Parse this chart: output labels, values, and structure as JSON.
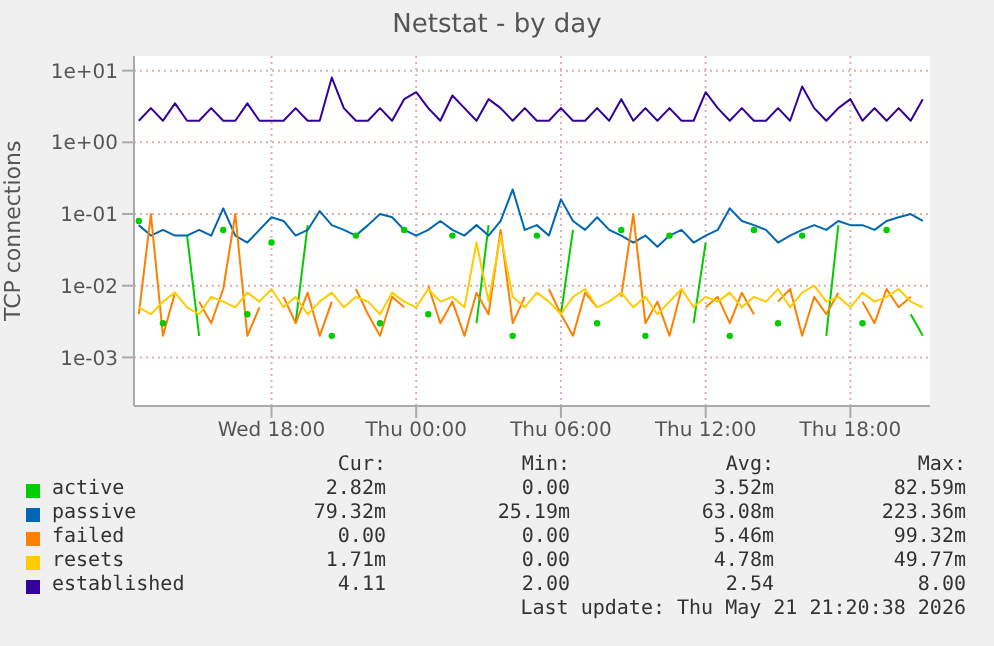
{
  "chart_data": {
    "type": "line",
    "title": "Netstat - by day",
    "ylabel": "TCP connections",
    "log": "y",
    "grid": true,
    "legend": "bottom",
    "xlim": [
      "2026-05-20T12:18",
      "2026-05-21T21:18"
    ],
    "xticks": [
      {
        "value": "2026-05-20T18:00",
        "label": "Wed 18:00"
      },
      {
        "value": "2026-05-21T00:00",
        "label": "Thu 00:00"
      },
      {
        "value": "2026-05-21T06:00",
        "label": "Thu 06:00"
      },
      {
        "value": "2026-05-21T12:00",
        "label": "Thu 12:00"
      },
      {
        "value": "2026-05-21T18:00",
        "label": "Thu 18:00"
      }
    ],
    "ylim": [
      0.00021,
      16
    ],
    "yticks": [
      {
        "value": 0.001,
        "label": "1e-03"
      },
      {
        "value": 0.01,
        "label": "1e-02"
      },
      {
        "value": 0.1,
        "label": "1e-01"
      },
      {
        "value": 1,
        "label": "1e+00"
      },
      {
        "value": 10,
        "label": "1e+01"
      }
    ],
    "x": [
      "2026-05-20T12:30",
      "2026-05-20T13:00",
      "2026-05-20T13:30",
      "2026-05-20T14:00",
      "2026-05-20T14:30",
      "2026-05-20T15:00",
      "2026-05-20T15:30",
      "2026-05-20T16:00",
      "2026-05-20T16:30",
      "2026-05-20T17:00",
      "2026-05-20T17:30",
      "2026-05-20T18:00",
      "2026-05-20T18:30",
      "2026-05-20T19:00",
      "2026-05-20T19:30",
      "2026-05-20T20:00",
      "2026-05-20T20:30",
      "2026-05-20T21:00",
      "2026-05-20T21:30",
      "2026-05-20T22:00",
      "2026-05-20T22:30",
      "2026-05-20T23:00",
      "2026-05-20T23:30",
      "2026-05-21T00:00",
      "2026-05-21T00:30",
      "2026-05-21T01:00",
      "2026-05-21T01:30",
      "2026-05-21T02:00",
      "2026-05-21T02:30",
      "2026-05-21T03:00",
      "2026-05-21T03:30",
      "2026-05-21T04:00",
      "2026-05-21T04:30",
      "2026-05-21T05:00",
      "2026-05-21T05:30",
      "2026-05-21T06:00",
      "2026-05-21T06:30",
      "2026-05-21T07:00",
      "2026-05-21T07:30",
      "2026-05-21T08:00",
      "2026-05-21T08:30",
      "2026-05-21T09:00",
      "2026-05-21T09:30",
      "2026-05-21T10:00",
      "2026-05-21T10:30",
      "2026-05-21T11:00",
      "2026-05-21T11:30",
      "2026-05-21T12:00",
      "2026-05-21T12:30",
      "2026-05-21T13:00",
      "2026-05-21T13:30",
      "2026-05-21T14:00",
      "2026-05-21T14:30",
      "2026-05-21T15:00",
      "2026-05-21T15:30",
      "2026-05-21T16:00",
      "2026-05-21T16:30",
      "2026-05-21T17:00",
      "2026-05-21T17:30",
      "2026-05-21T18:00",
      "2026-05-21T18:30",
      "2026-05-21T19:00",
      "2026-05-21T19:30",
      "2026-05-21T20:00",
      "2026-05-21T20:30",
      "2026-05-21T21:00"
    ],
    "series": [
      {
        "name": "active",
        "color": "#00cc00",
        "values": [
          0.08,
          null,
          0.003,
          null,
          0.05,
          0.002,
          null,
          0.06,
          null,
          0.004,
          null,
          0.04,
          null,
          0.003,
          0.07,
          null,
          0.002,
          null,
          0.05,
          null,
          0.003,
          null,
          0.06,
          null,
          0.004,
          null,
          0.05,
          null,
          0.003,
          0.07,
          null,
          0.002,
          null,
          0.05,
          null,
          0.004,
          0.06,
          null,
          0.003,
          null,
          0.06,
          null,
          0.002,
          null,
          0.05,
          null,
          0.003,
          0.04,
          null,
          0.002,
          null,
          0.06,
          null,
          0.003,
          null,
          0.05,
          null,
          0.002,
          0.07,
          null,
          0.003,
          null,
          0.06,
          null,
          0.004,
          0.002
        ]
      },
      {
        "name": "passive",
        "color": "#0066b3",
        "values": [
          0.07,
          0.05,
          0.06,
          0.05,
          0.05,
          0.06,
          0.05,
          0.12,
          0.05,
          0.04,
          0.06,
          0.09,
          0.08,
          0.05,
          0.06,
          0.11,
          0.07,
          0.06,
          0.05,
          0.07,
          0.1,
          0.09,
          0.06,
          0.05,
          0.06,
          0.08,
          0.06,
          0.05,
          0.07,
          0.05,
          0.08,
          0.22,
          0.06,
          0.07,
          0.05,
          0.16,
          0.08,
          0.06,
          0.09,
          0.06,
          0.05,
          0.04,
          0.05,
          0.035,
          0.05,
          0.06,
          0.04,
          0.05,
          0.06,
          0.12,
          0.08,
          0.07,
          0.06,
          0.04,
          0.05,
          0.06,
          0.07,
          0.06,
          0.08,
          0.07,
          0.07,
          0.06,
          0.08,
          0.09,
          0.1,
          0.08
        ]
      },
      {
        "name": "failed",
        "color": "#ff8000",
        "values": [
          0.004,
          0.1,
          0.002,
          0.008,
          null,
          0.006,
          0.003,
          0.009,
          0.1,
          0.002,
          0.005,
          null,
          0.007,
          0.003,
          0.008,
          0.002,
          0.006,
          null,
          0.009,
          0.004,
          0.002,
          0.007,
          0.005,
          null,
          0.01,
          0.003,
          0.006,
          0.002,
          0.008,
          0.004,
          0.06,
          0.003,
          0.007,
          null,
          0.009,
          0.004,
          0.002,
          0.008,
          0.005,
          null,
          0.007,
          0.1,
          0.003,
          0.006,
          0.002,
          0.009,
          null,
          0.005,
          0.007,
          0.003,
          0.008,
          0.004,
          null,
          0.006,
          0.009,
          0.002,
          0.007,
          0.004,
          0.008,
          null,
          0.006,
          0.003,
          0.009,
          0.005,
          0.007,
          null
        ]
      },
      {
        "name": "resets",
        "color": "#ffcc00",
        "values": [
          0.005,
          0.004,
          0.006,
          0.008,
          0.005,
          0.004,
          0.007,
          0.006,
          0.005,
          0.008,
          0.006,
          0.009,
          0.005,
          0.007,
          0.004,
          0.006,
          0.008,
          0.005,
          0.007,
          0.006,
          0.004,
          0.008,
          0.006,
          0.005,
          0.009,
          0.006,
          0.007,
          0.005,
          0.04,
          0.006,
          0.05,
          0.007,
          0.005,
          0.008,
          0.006,
          0.004,
          0.007,
          0.009,
          0.005,
          0.006,
          0.008,
          0.005,
          0.007,
          0.004,
          0.006,
          0.009,
          0.005,
          0.007,
          0.006,
          0.008,
          0.005,
          0.007,
          0.006,
          0.009,
          0.005,
          0.008,
          0.01,
          0.006,
          0.007,
          0.005,
          0.008,
          0.006,
          0.007,
          0.009,
          0.006,
          0.005
        ]
      },
      {
        "name": "established",
        "color": "#330099",
        "values": [
          2,
          3,
          2,
          3.5,
          2,
          2,
          3,
          2,
          2,
          3.5,
          2,
          2,
          2,
          3,
          2,
          2,
          8,
          3,
          2,
          2,
          3,
          2,
          4,
          5,
          3,
          2,
          4.5,
          3,
          2,
          4,
          3,
          2,
          3,
          2,
          2,
          3,
          2,
          2,
          3,
          2,
          4,
          2,
          3,
          2,
          3,
          2,
          2,
          5,
          3,
          2,
          3,
          2,
          2,
          3,
          2,
          6,
          3,
          2,
          3,
          4,
          2,
          3,
          2,
          3,
          2,
          4
        ]
      }
    ],
    "annotations": [
      "Cur:",
      "Min:",
      "Avg:",
      "Max:",
      "2.82m",
      "0.00",
      "3.52m",
      "82.59m",
      "79.32m",
      "25.19m",
      "63.08m",
      "223.36m",
      "0.00",
      "0.00",
      "5.46m",
      "99.32m",
      "1.71m",
      "0.00",
      "4.78m",
      "49.77m",
      "4.11",
      "2.00",
      "2.54",
      "8.00",
      "Last update: Thu May 21 21:20:38 2026"
    ]
  }
}
